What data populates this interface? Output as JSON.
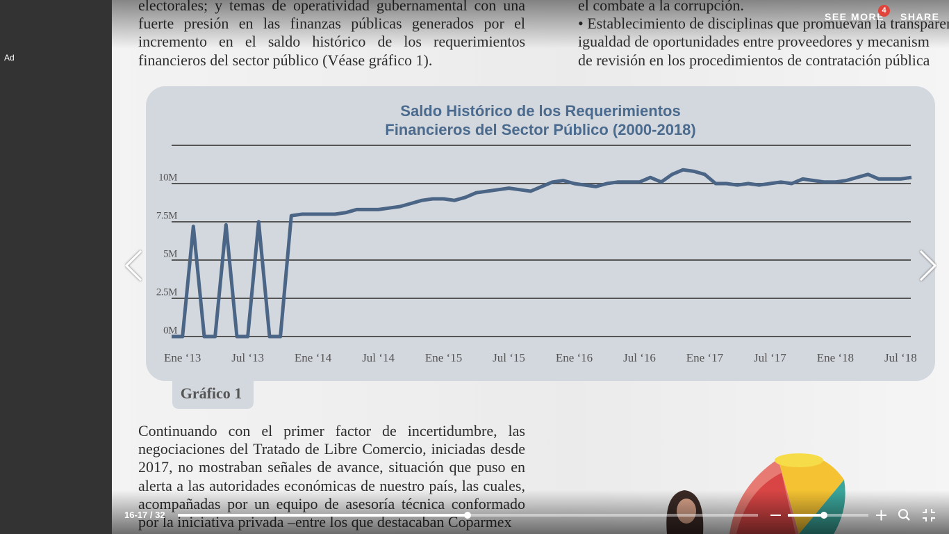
{
  "sidebar": {
    "ad": "Ad"
  },
  "viewer": {
    "see_more": "SEE MORE",
    "badge": 4,
    "share": "SHARE",
    "page_indicator": "16-17 / 32"
  },
  "document": {
    "left_top": [
      "electorales; y temas de operatividad gubernamental con una",
      "fuerte presión en las finanzas públicas generados por el",
      "incremento en el saldo histórico de los requerimientos",
      "financieros del sector público (Véase gráfico 1)."
    ],
    "right_top": [
      "el combate a la corrupción.",
      "• Establecimiento de disciplinas que promuevan la transparenci",
      "igualdad de oportunidades entre proveedores y mecanism",
      "de revisión en los procedimientos de contratación pública"
    ],
    "caption": "Gráfico 1",
    "left_bottom": [
      "Continuando con el primer factor de incertidumbre, las",
      "negociaciones del Tratado de Libre Comercio, iniciadas desde",
      "2017, no mostraban señales de avance, situación que puso en",
      "alerta a las autoridades económicas de nuestro país, las cuales,",
      "acompañadas por un equipo de asesoría técnica conformado",
      "por la iniciativa privada –entre los que destacaban Coparmex"
    ]
  },
  "chart_data": {
    "type": "line",
    "title": [
      "Saldo Histórico de los Requerimientos",
      "Financieros del Sector Público (2000-2018)"
    ],
    "categories": [
      null,
      "Ene ‘13",
      null,
      null,
      null,
      null,
      null,
      "Jul ‘13",
      null,
      null,
      null,
      null,
      null,
      "Ene ‘14",
      null,
      null,
      null,
      null,
      null,
      "Jul ‘14",
      null,
      null,
      null,
      null,
      null,
      "Ene ‘15",
      null,
      null,
      null,
      null,
      null,
      "Jul ‘15",
      null,
      null,
      null,
      null,
      null,
      "Ene ‘16",
      null,
      null,
      null,
      null,
      null,
      "Jul ‘16",
      null,
      null,
      null,
      null,
      null,
      "Ene ‘17",
      null,
      null,
      null,
      null,
      null,
      "Jul ‘17",
      null,
      null,
      null,
      null,
      null,
      "Ene ‘18",
      null,
      null,
      null,
      null,
      null,
      "Jul ‘18",
      null
    ],
    "values": [
      0,
      0,
      7.2,
      0,
      0,
      7.3,
      0,
      0,
      7.5,
      0,
      0,
      7.9,
      8.0,
      8.0,
      8.0,
      8.0,
      8.1,
      8.3,
      8.3,
      8.3,
      8.4,
      8.5,
      8.7,
      8.9,
      9.0,
      9.0,
      8.9,
      9.1,
      9.4,
      9.5,
      9.6,
      9.7,
      9.6,
      9.5,
      9.8,
      10.1,
      10.2,
      10.0,
      9.9,
      9.8,
      10.0,
      10.1,
      10.1,
      10.1,
      10.4,
      10.1,
      10.6,
      10.9,
      10.8,
      10.6,
      10.0,
      10.0,
      9.9,
      10.0,
      9.9,
      10.0,
      10.1,
      10.0,
      10.3,
      10.2,
      10.1,
      10.1,
      10.2,
      10.4,
      10.6,
      10.3,
      10.3,
      10.3,
      10.4
    ],
    "color": "#4a6585",
    "ylim": [
      0,
      12.5
    ],
    "yticks": [
      {
        "value": 0,
        "label": "0M"
      },
      {
        "value": 2.5,
        "label": "2.5M"
      },
      {
        "value": 5,
        "label": "5M"
      },
      {
        "value": 7.5,
        "label": "7.5M"
      },
      {
        "value": 10,
        "label": "10M"
      }
    ],
    "grid": true
  }
}
